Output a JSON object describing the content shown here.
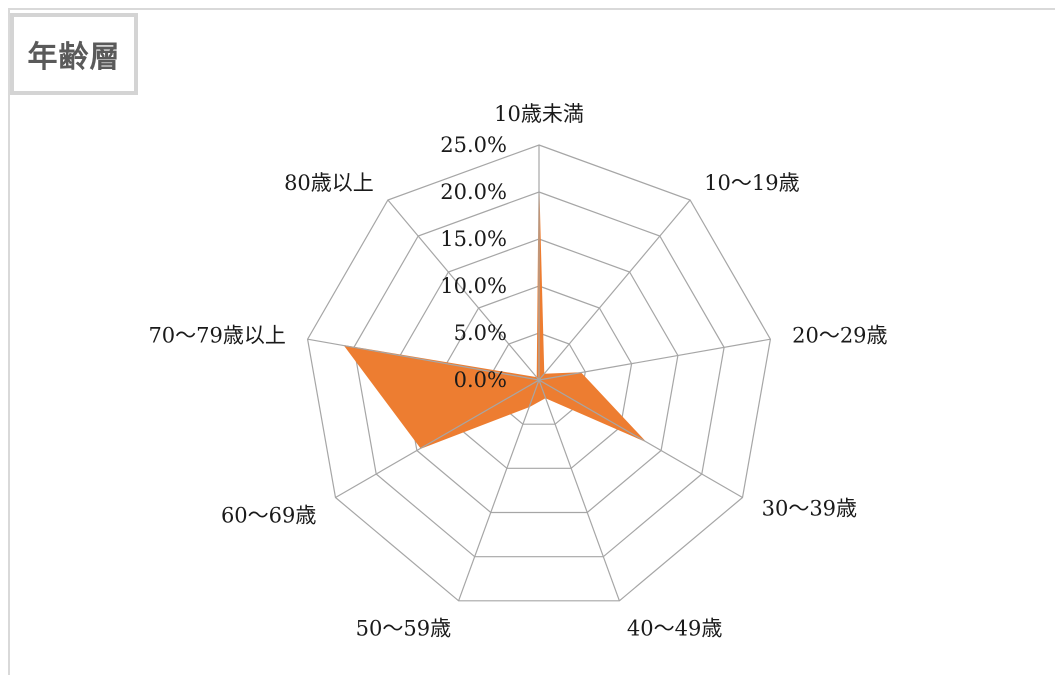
{
  "header": {
    "title": "年齢層"
  },
  "chart_data": {
    "type": "radar",
    "title": "年齢層",
    "categories": [
      "10歳未満",
      "10～19歳",
      "20～29歳",
      "30～39歳",
      "40～49歳",
      "50～59歳",
      "60～69歳",
      "70～79歳以上",
      "80歳以上"
    ],
    "series": [
      {
        "values": [
          20.0,
          0.8,
          4.5,
          13.0,
          2.0,
          3.0,
          14.5,
          21.0,
          0.3
        ]
      }
    ],
    "ticks": [
      "0.0%",
      "5.0%",
      "10.0%",
      "15.0%",
      "20.0%",
      "25.0%"
    ],
    "rlim": [
      0,
      25
    ],
    "grid": true,
    "legend": "none",
    "colors": {
      "series": "#ed7d31",
      "grid": "#a6a6a6"
    }
  }
}
